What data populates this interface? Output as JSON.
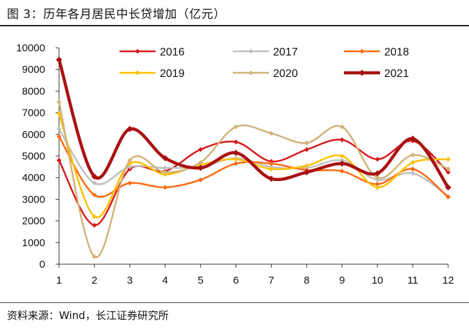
{
  "header": {
    "title": "图 3：历年各月居民中长贷增加（亿元）"
  },
  "footer": {
    "source": "资料来源：Wind，长江证券研究所"
  },
  "chart_data": {
    "type": "line",
    "title": "图 3：历年各月居民中长贷增加（亿元）",
    "xlabel": "",
    "ylabel": "",
    "x": [
      1,
      2,
      3,
      4,
      5,
      6,
      7,
      8,
      9,
      10,
      11,
      12
    ],
    "ylim": [
      0,
      10000
    ],
    "yticks": [
      0,
      1000,
      2000,
      3000,
      4000,
      5000,
      6000,
      7000,
      8000,
      9000,
      10000
    ],
    "legend_position": "top",
    "series": [
      {
        "name": "2016",
        "color": "#d7191c",
        "values": [
          4800,
          1800,
          4400,
          4300,
          5300,
          5650,
          4750,
          5300,
          5750,
          4850,
          5700,
          4250
        ]
      },
      {
        "name": "2017",
        "color": "#c0c0c0",
        "values": [
          6250,
          3750,
          4500,
          4450,
          4500,
          4900,
          4500,
          4450,
          4800,
          3900,
          4200,
          3150
        ]
      },
      {
        "name": "2018",
        "color": "#ff6a10",
        "values": [
          5900,
          3200,
          3750,
          3550,
          3900,
          4650,
          4650,
          4350,
          4300,
          3700,
          4400,
          3100
        ]
      },
      {
        "name": "2019",
        "color": "#ffc000",
        "values": [
          6950,
          2200,
          4650,
          4150,
          4600,
          4850,
          4400,
          4550,
          5000,
          3550,
          4700,
          4850
        ]
      },
      {
        "name": "2020",
        "color": "#d2b278",
        "values": [
          7500,
          350,
          4800,
          4250,
          4700,
          6350,
          6050,
          5600,
          6350,
          4000,
          5050,
          4400
        ]
      },
      {
        "name": "2021",
        "color": "#aa1111",
        "values": [
          9450,
          4050,
          6250,
          4900,
          4450,
          5150,
          3950,
          4250,
          4650,
          4200,
          5800,
          3550
        ]
      }
    ]
  }
}
